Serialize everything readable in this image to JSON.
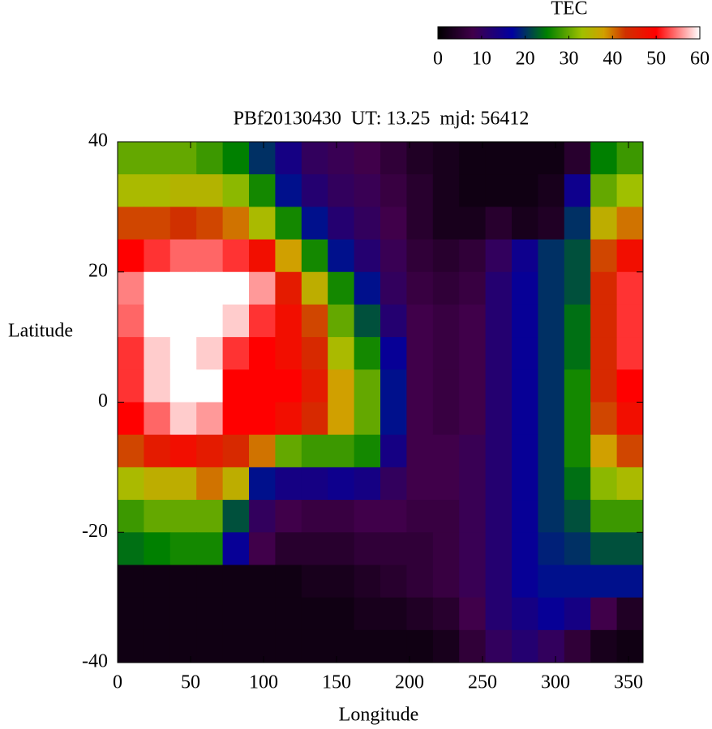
{
  "chart_data": {
    "type": "heatmap",
    "title": "PBf20130430  UT: 13.25  mjd: 56412",
    "x_label": "Longitude",
    "y_label": "Latitude",
    "colorbar_label": "TEC",
    "xlim": [
      0,
      360
    ],
    "ylim": [
      -40,
      40
    ],
    "xticks": [
      0,
      50,
      100,
      150,
      200,
      250,
      300,
      350
    ],
    "yticks": [
      -40,
      -20,
      0,
      20,
      40
    ],
    "clim": [
      0,
      60
    ],
    "cticks": [
      0,
      10,
      20,
      30,
      40,
      50,
      60
    ],
    "colorscale": [
      [
        0,
        "#000000"
      ],
      [
        8,
        "#40004a"
      ],
      [
        17,
        "#0000a0"
      ],
      [
        25,
        "#008000"
      ],
      [
        33,
        "#a0c000"
      ],
      [
        38,
        "#d0a000"
      ],
      [
        43,
        "#d03000"
      ],
      [
        50,
        "#ff0000"
      ],
      [
        60,
        "#ffffff"
      ]
    ],
    "x": [
      9,
      27,
      45,
      63,
      81,
      99,
      117,
      135,
      153,
      171,
      189,
      207,
      225,
      243,
      261,
      279,
      297,
      315,
      333,
      351
    ],
    "y": [
      37.5,
      32.5,
      27.5,
      22.5,
      17.5,
      12.5,
      7.5,
      2.5,
      -2.5,
      -7.5,
      -12.5,
      -17.5,
      -22.5,
      -27.5,
      -32.5,
      -37.5
    ],
    "z": [
      [
        30,
        30,
        30,
        28,
        25,
        20,
        14,
        10,
        9,
        8,
        6,
        4,
        3,
        2,
        2,
        2,
        2,
        5,
        25,
        28
      ],
      [
        34,
        34,
        35,
        35,
        32,
        26,
        18,
        12,
        10,
        9,
        7,
        5,
        3,
        2,
        2,
        2,
        3,
        15,
        30,
        33
      ],
      [
        42,
        42,
        43,
        42,
        40,
        34,
        26,
        18,
        12,
        10,
        8,
        5,
        3,
        3,
        5,
        3,
        4,
        20,
        36,
        40
      ],
      [
        50,
        52,
        54,
        54,
        52,
        48,
        38,
        26,
        18,
        12,
        9,
        6,
        5,
        6,
        10,
        15,
        20,
        22,
        42,
        48
      ],
      [
        55,
        60,
        60,
        60,
        60,
        56,
        46,
        36,
        26,
        18,
        10,
        7,
        6,
        7,
        12,
        16,
        20,
        22,
        44,
        52
      ],
      [
        54,
        60,
        60,
        60,
        58,
        52,
        48,
        42,
        30,
        22,
        12,
        8,
        7,
        8,
        12,
        16,
        20,
        24,
        44,
        52
      ],
      [
        52,
        58,
        60,
        58,
        52,
        50,
        48,
        44,
        34,
        26,
        16,
        8,
        7,
        8,
        12,
        16,
        20,
        24,
        44,
        52
      ],
      [
        52,
        58,
        60,
        60,
        50,
        50,
        50,
        46,
        38,
        30,
        18,
        8,
        7,
        8,
        12,
        16,
        20,
        26,
        44,
        50
      ],
      [
        50,
        54,
        58,
        56,
        50,
        50,
        48,
        44,
        38,
        30,
        18,
        8,
        7,
        8,
        12,
        16,
        20,
        26,
        42,
        48
      ],
      [
        42,
        46,
        48,
        46,
        44,
        40,
        30,
        28,
        28,
        26,
        14,
        8,
        8,
        9,
        12,
        16,
        20,
        26,
        38,
        42
      ],
      [
        34,
        36,
        36,
        40,
        36,
        18,
        14,
        14,
        15,
        14,
        10,
        8,
        8,
        9,
        12,
        16,
        20,
        24,
        32,
        34
      ],
      [
        28,
        30,
        30,
        30,
        22,
        10,
        8,
        7,
        7,
        8,
        8,
        7,
        7,
        9,
        12,
        16,
        20,
        22,
        28,
        28
      ],
      [
        24,
        25,
        26,
        26,
        16,
        8,
        5,
        5,
        5,
        6,
        6,
        6,
        7,
        9,
        12,
        16,
        19,
        20,
        22,
        22
      ],
      [
        2,
        2,
        2,
        2,
        2,
        2,
        2,
        3,
        3,
        4,
        5,
        6,
        7,
        9,
        12,
        16,
        18,
        18,
        18,
        18
      ],
      [
        2,
        2,
        2,
        2,
        2,
        2,
        2,
        2,
        2,
        3,
        3,
        4,
        5,
        8,
        12,
        14,
        16,
        14,
        8,
        4
      ],
      [
        2,
        2,
        2,
        2,
        2,
        2,
        2,
        2,
        2,
        2,
        2,
        2,
        3,
        6,
        10,
        12,
        10,
        6,
        3,
        2
      ]
    ]
  }
}
